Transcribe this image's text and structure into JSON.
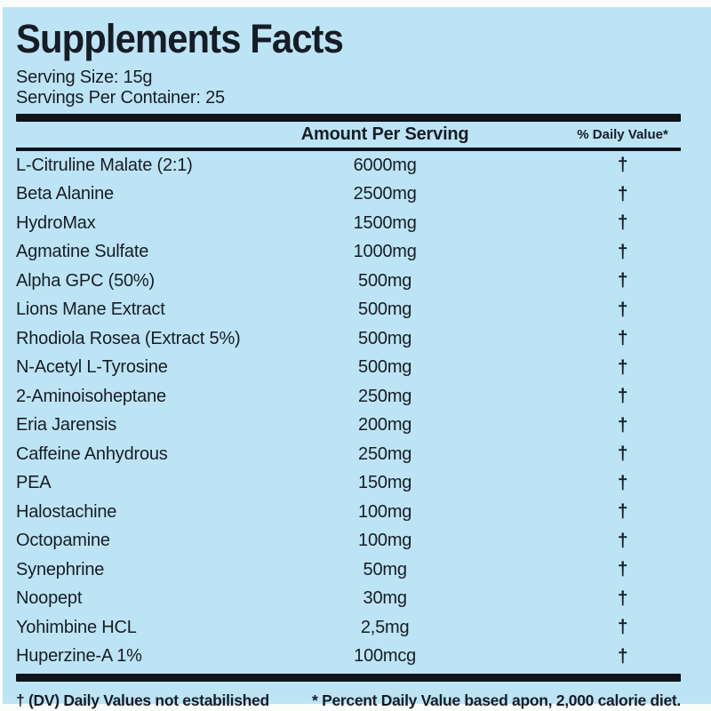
{
  "label": {
    "title": "Supplements Facts",
    "serving_size": "Serving Size: 15g",
    "servings_per_container": "Servings Per Container: 25",
    "header": {
      "amount_column": "Amount Per Serving",
      "daily_value_column": "% Daily Value*"
    },
    "rows": [
      {
        "name": "L-Citruline Malate (2:1)",
        "amount": "6000mg",
        "daily_value": "†"
      },
      {
        "name": "Beta Alanine",
        "amount": "2500mg",
        "daily_value": "†"
      },
      {
        "name": "HydroMax",
        "amount": "1500mg",
        "daily_value": "†"
      },
      {
        "name": "Agmatine Sulfate",
        "amount": "1000mg",
        "daily_value": "†"
      },
      {
        "name": "Alpha GPC (50%)",
        "amount": "500mg",
        "daily_value": "†"
      },
      {
        "name": "Lions Mane Extract",
        "amount": "500mg",
        "daily_value": "†"
      },
      {
        "name": "Rhodiola Rosea (Extract 5%)",
        "amount": "500mg",
        "daily_value": "†"
      },
      {
        "name": "N-Acetyl L-Tyrosine",
        "amount": "500mg",
        "daily_value": "†"
      },
      {
        "name": "2-Aminoisoheptane",
        "amount": "250mg",
        "daily_value": "†"
      },
      {
        "name": "Eria Jarensis",
        "amount": "200mg",
        "daily_value": "†"
      },
      {
        "name": "Caffeine Anhydrous",
        "amount": "250mg",
        "daily_value": "†"
      },
      {
        "name": "PEA",
        "amount": "150mg",
        "daily_value": "†"
      },
      {
        "name": "Halostachine",
        "amount": "100mg",
        "daily_value": "†"
      },
      {
        "name": "Octopamine",
        "amount": "100mg",
        "daily_value": "†"
      },
      {
        "name": "Synephrine",
        "amount": "50mg",
        "daily_value": "†"
      },
      {
        "name": "Noopept",
        "amount": "30mg",
        "daily_value": "†"
      },
      {
        "name": "Yohimbine HCL",
        "amount": "2,5mg",
        "daily_value": "†"
      },
      {
        "name": "Huperzine-A 1%",
        "amount": "100mcg",
        "daily_value": "†"
      }
    ],
    "footnotes": {
      "daily_value_note": "† (DV) Daily Values not estabilished",
      "percent_note": "* Percent Daily Value based apon, 2,000 calorie diet."
    },
    "colors": {
      "panel_background": "#bde4f4",
      "text": "#161d27",
      "bar": "#0d141b",
      "page": "#fbfdfb"
    }
  }
}
